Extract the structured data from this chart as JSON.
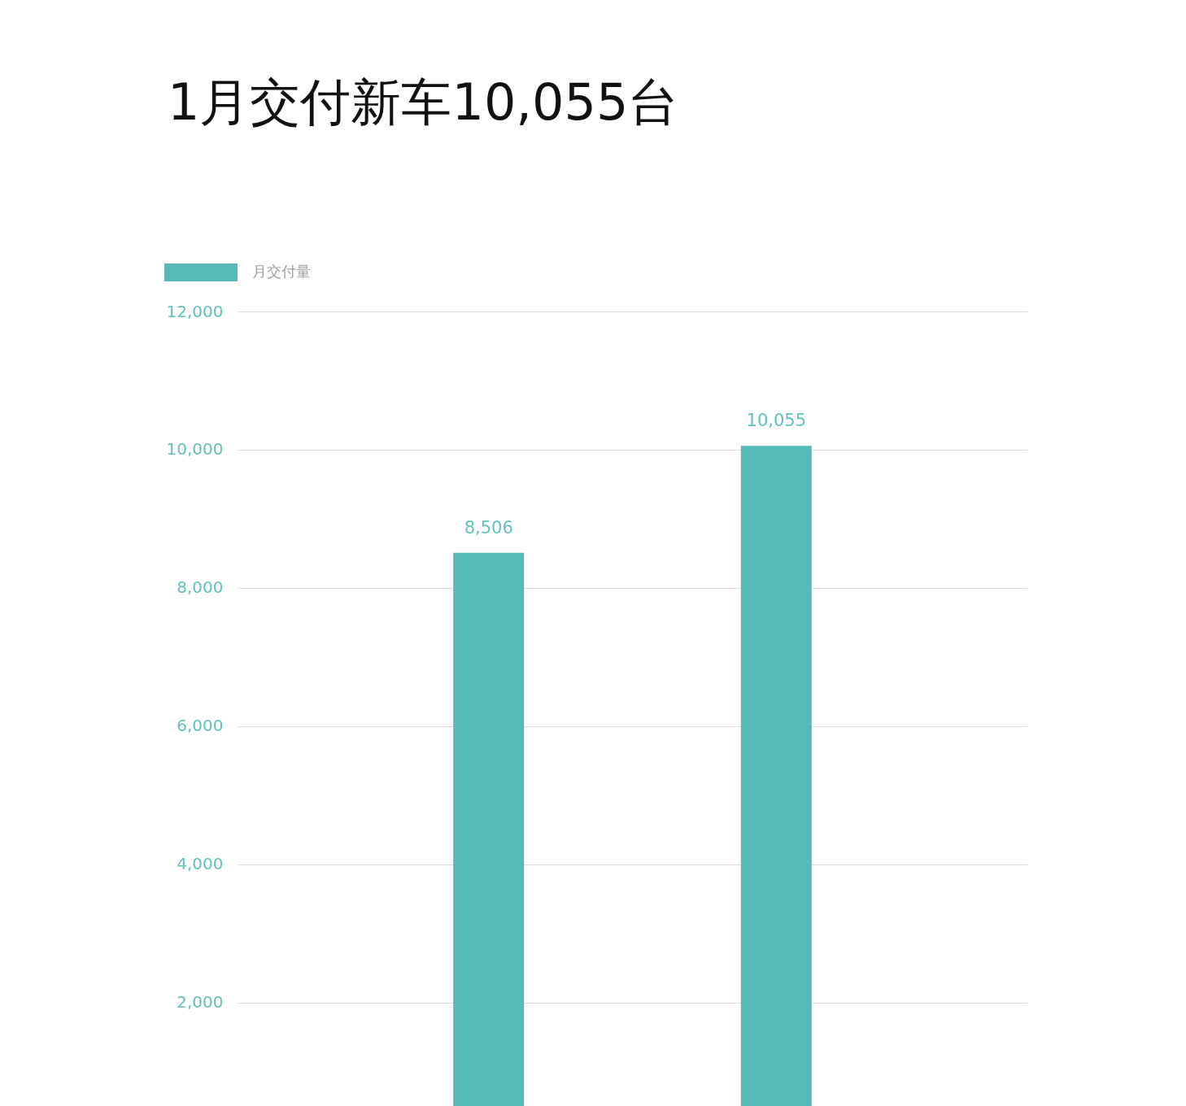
{
  "chart_data": {
    "type": "bar",
    "title": "1月交付新车10,055台",
    "categories": [
      null,
      null
    ],
    "series": [
      {
        "name": "月交付量",
        "color": "#58b9b9",
        "values": [
          8506,
          10055
        ],
        "value_labels": [
          "8,506",
          "10,055"
        ]
      }
    ],
    "ylim": [
      500,
      12000
    ],
    "yticks": [
      {
        "value": 2000,
        "label": "2,000"
      },
      {
        "value": 4000,
        "label": "4,000"
      },
      {
        "value": 6000,
        "label": "6,000"
      },
      {
        "value": 8000,
        "label": "8,000"
      },
      {
        "value": 10000,
        "label": "10,000"
      },
      {
        "value": 12000,
        "label": "12,000"
      }
    ],
    "grid": "y",
    "legend": "top left",
    "tick_labels": "y"
  }
}
